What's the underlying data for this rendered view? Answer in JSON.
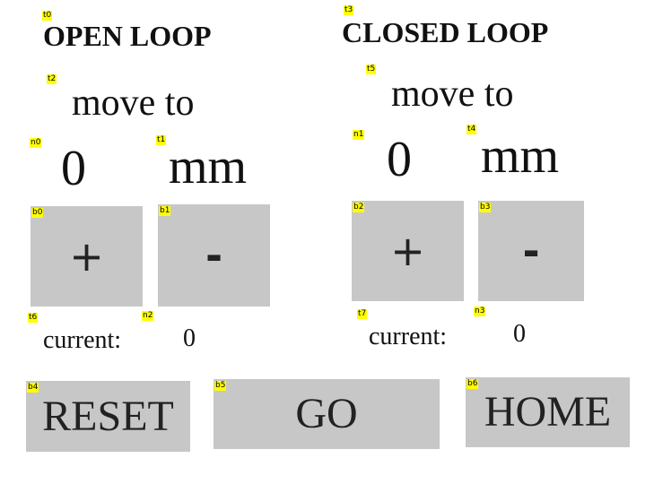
{
  "tags": {
    "t0": "t0",
    "t1": "t1",
    "t2": "t2",
    "t3": "t3",
    "t4": "t4",
    "t5": "t5",
    "t6": "t6",
    "t7": "t7",
    "n0": "n0",
    "n1": "n1",
    "n2": "n2",
    "n3": "n3",
    "b0": "b0",
    "b1": "b1",
    "b2": "b2",
    "b3": "b3",
    "b4": "b4",
    "b5": "b5",
    "b6": "b6"
  },
  "open_loop": {
    "heading": "OPEN LOOP",
    "move_label": "move to",
    "target_value": "0",
    "unit": "mm",
    "plus_label": "+",
    "minus_label": "-",
    "current_label": "current:",
    "current_value": "0"
  },
  "closed_loop": {
    "heading": "CLOSED LOOP",
    "move_label": "move to",
    "target_value": "0",
    "unit": "mm",
    "plus_label": "+",
    "minus_label": "-",
    "current_label": "current:",
    "current_value": "0"
  },
  "actions": {
    "reset_label": "RESET",
    "go_label": "GO",
    "home_label": "HOME"
  },
  "colors": {
    "button_bg": "#c8c7c8",
    "tag_bg": "#ffff00"
  }
}
